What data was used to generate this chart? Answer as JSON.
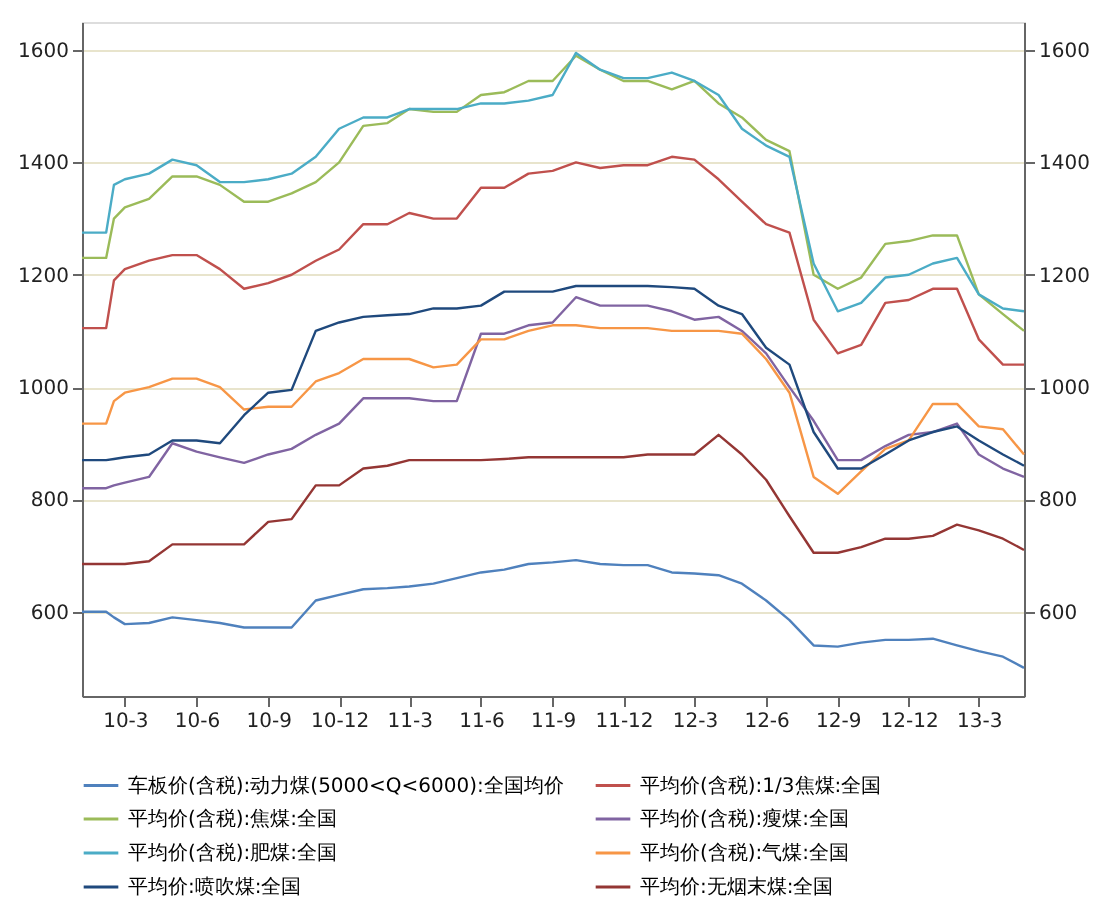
{
  "chart_data": {
    "type": "line",
    "x": [
      "2010-01-05",
      "2010-02-05",
      "2010-02-15",
      "2010-03-01",
      "2010-04-01",
      "2010-05-01",
      "2010-06-01",
      "2010-07-01",
      "2010-08-01",
      "2010-09-01",
      "2010-10-01",
      "2010-11-01",
      "2010-12-01",
      "2011-01-01",
      "2011-02-01",
      "2011-03-01",
      "2011-04-01",
      "2011-05-01",
      "2011-06-01",
      "2011-07-01",
      "2011-08-01",
      "2011-09-01",
      "2011-10-01",
      "2011-11-01",
      "2011-12-01",
      "2012-01-01",
      "2012-02-01",
      "2012-03-01",
      "2012-04-01",
      "2012-05-01",
      "2012-06-01",
      "2012-07-01",
      "2012-08-01",
      "2012-09-01",
      "2012-10-01",
      "2012-11-01",
      "2012-12-01",
      "2013-01-01",
      "2013-02-01",
      "2013-03-01",
      "2013-04-01",
      "2013-04-28"
    ],
    "series": [
      {
        "name": "车板价(含税):动力煤(5000<Q<6000):全国均价",
        "color": "#4f81bd",
        "values": [
          600,
          600,
          590,
          578,
          580,
          590,
          585,
          580,
          572,
          572,
          572,
          620,
          630,
          640,
          642,
          645,
          650,
          660,
          670,
          675,
          685,
          688,
          692,
          685,
          683,
          683,
          670,
          668,
          665,
          650,
          620,
          585,
          540,
          538,
          545,
          550,
          550,
          552,
          540,
          530,
          520,
          500
        ]
      },
      {
        "name": "平均价(含税):1/3焦煤:全国",
        "color": "#c0504d",
        "values": [
          1105,
          1105,
          1190,
          1210,
          1225,
          1235,
          1235,
          1210,
          1175,
          1185,
          1200,
          1225,
          1245,
          1290,
          1290,
          1310,
          1300,
          1300,
          1355,
          1355,
          1380,
          1385,
          1400,
          1390,
          1395,
          1395,
          1410,
          1405,
          1370,
          1330,
          1290,
          1275,
          1120,
          1060,
          1075,
          1150,
          1155,
          1175,
          1175,
          1085,
          1040,
          1040
        ]
      },
      {
        "name": "平均价(含税):焦煤:全国",
        "color": "#9bbb59",
        "values": [
          1230,
          1230,
          1300,
          1320,
          1335,
          1375,
          1375,
          1360,
          1330,
          1330,
          1345,
          1365,
          1400,
          1465,
          1470,
          1495,
          1490,
          1490,
          1520,
          1525,
          1545,
          1545,
          1590,
          1565,
          1545,
          1545,
          1530,
          1545,
          1505,
          1480,
          1440,
          1420,
          1200,
          1175,
          1195,
          1255,
          1260,
          1270,
          1270,
          1165,
          1130,
          1100
        ]
      },
      {
        "name": "平均价(含税):瘦煤:全国",
        "color": "#8064a2",
        "values": [
          820,
          820,
          825,
          830,
          840,
          900,
          885,
          875,
          865,
          880,
          890,
          915,
          935,
          980,
          980,
          980,
          975,
          975,
          1095,
          1095,
          1110,
          1115,
          1160,
          1145,
          1145,
          1145,
          1135,
          1120,
          1125,
          1100,
          1060,
          1000,
          940,
          870,
          870,
          895,
          915,
          920,
          935,
          880,
          855,
          840
        ]
      },
      {
        "name": "平均价(含税):肥煤:全国",
        "color": "#4bacc6",
        "values": [
          1275,
          1275,
          1360,
          1370,
          1380,
          1405,
          1395,
          1365,
          1365,
          1370,
          1380,
          1410,
          1460,
          1480,
          1480,
          1495,
          1495,
          1495,
          1505,
          1505,
          1510,
          1520,
          1595,
          1565,
          1550,
          1550,
          1560,
          1545,
          1520,
          1460,
          1430,
          1410,
          1220,
          1135,
          1150,
          1195,
          1200,
          1220,
          1230,
          1165,
          1140,
          1135
        ]
      },
      {
        "name": "平均价(含税):气煤:全国",
        "color": "#f79646",
        "values": [
          935,
          935,
          975,
          990,
          1000,
          1015,
          1015,
          1000,
          960,
          965,
          965,
          1010,
          1025,
          1050,
          1050,
          1050,
          1035,
          1040,
          1085,
          1085,
          1100,
          1110,
          1110,
          1105,
          1105,
          1105,
          1100,
          1100,
          1100,
          1095,
          1050,
          990,
          840,
          810,
          850,
          890,
          905,
          970,
          970,
          930,
          925,
          880
        ]
      },
      {
        "name": "平均价:喷吹煤:全国",
        "color": "#1f497d",
        "values": [
          870,
          870,
          872,
          875,
          880,
          905,
          905,
          900,
          950,
          990,
          995,
          1100,
          1115,
          1125,
          1128,
          1130,
          1140,
          1140,
          1145,
          1170,
          1170,
          1170,
          1180,
          1180,
          1180,
          1180,
          1178,
          1175,
          1145,
          1130,
          1070,
          1040,
          920,
          855,
          855,
          880,
          905,
          920,
          930,
          905,
          880,
          860
        ]
      },
      {
        "name": "平均价:无烟末煤:全国",
        "color": "#943634",
        "values": [
          685,
          685,
          685,
          685,
          690,
          720,
          720,
          720,
          720,
          760,
          765,
          825,
          825,
          855,
          860,
          870,
          870,
          870,
          870,
          872,
          875,
          875,
          875,
          875,
          875,
          880,
          880,
          880,
          915,
          880,
          835,
          770,
          705,
          705,
          715,
          730,
          730,
          735,
          755,
          745,
          730,
          710
        ]
      }
    ],
    "xlim": [
      "2010-01-05",
      "2013-04-28"
    ],
    "xticks": [
      {
        "value": "2010-03-01",
        "label": "10-3"
      },
      {
        "value": "2010-06-01",
        "label": "10-6"
      },
      {
        "value": "2010-09-01",
        "label": "10-9"
      },
      {
        "value": "2010-12-01",
        "label": "10-12"
      },
      {
        "value": "2011-03-01",
        "label": "11-3"
      },
      {
        "value": "2011-06-01",
        "label": "11-6"
      },
      {
        "value": "2011-09-01",
        "label": "11-9"
      },
      {
        "value": "2011-12-01",
        "label": "11-12"
      },
      {
        "value": "2012-03-01",
        "label": "12-3"
      },
      {
        "value": "2012-06-01",
        "label": "12-6"
      },
      {
        "value": "2012-09-01",
        "label": "12-9"
      },
      {
        "value": "2012-12-01",
        "label": "12-12"
      },
      {
        "value": "2013-03-01",
        "label": "13-3"
      }
    ],
    "ylim": [
      450,
      1650
    ],
    "yticks": [
      600,
      800,
      1000,
      1200,
      1400,
      1600
    ],
    "y2lim": [
      450,
      1650
    ],
    "y2ticks": [
      600,
      800,
      1000,
      1200,
      1400,
      1600
    ],
    "grid": "y",
    "legend": "bottom",
    "marker": "none",
    "line_style": "solid"
  }
}
